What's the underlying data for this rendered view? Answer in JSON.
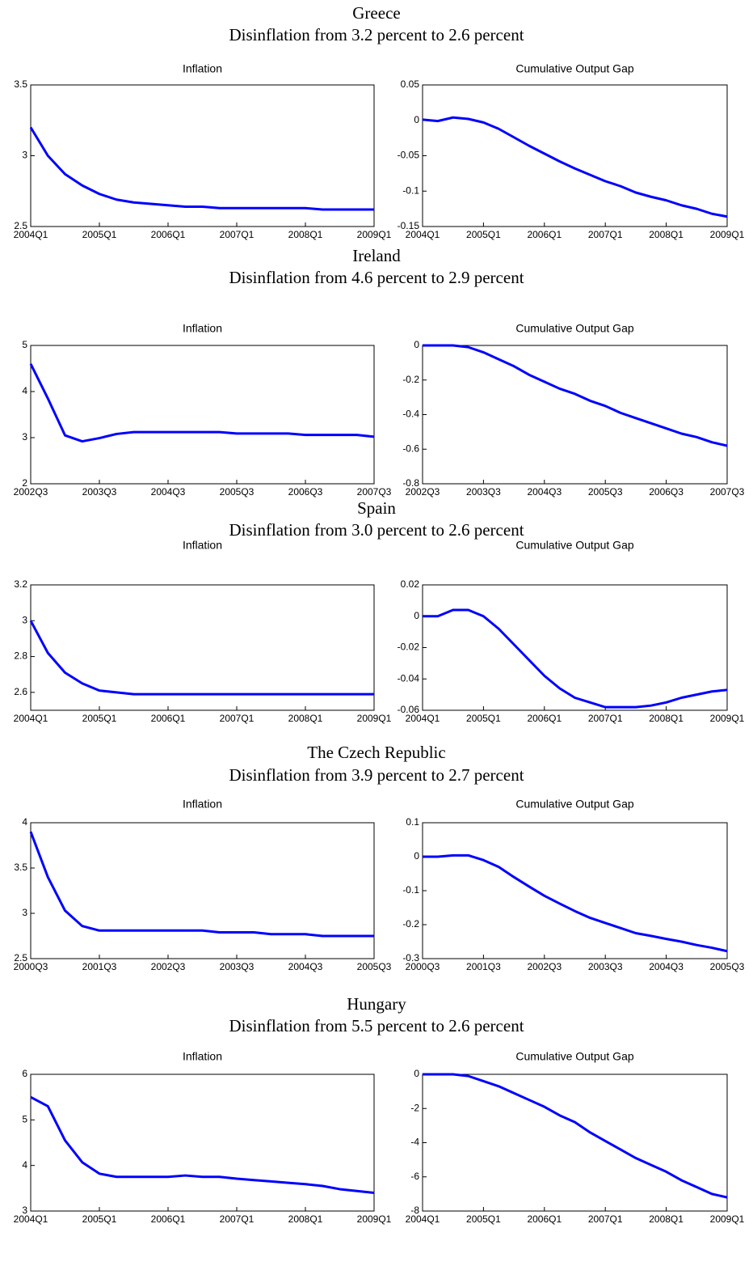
{
  "panels": [
    {
      "title": "Greece",
      "subtitle": "Disinflation from 3.2 percent to 2.6 percent"
    },
    {
      "title": "Ireland",
      "subtitle": "Disinflation from 4.6 percent to 2.9 percent"
    },
    {
      "title": "Spain",
      "subtitle": "Disinflation from 3.0 percent to 2.6 percent"
    },
    {
      "title": "The Czech Republic",
      "subtitle": "Disinflation from 3.9 percent to 2.7 percent"
    },
    {
      "title": "Hungary",
      "subtitle": "Disinflation from 5.5 percent to 2.6 percent"
    }
  ],
  "chart_data": [
    {
      "type": "line",
      "title": "Inflation",
      "color": "#0000ff",
      "grid": false,
      "categories": [
        "2004Q1",
        null,
        null,
        null,
        "2005Q1",
        null,
        null,
        null,
        "2006Q1",
        null,
        null,
        null,
        "2007Q1",
        null,
        null,
        null,
        "2008Q1",
        null,
        null,
        null,
        "2009Q1"
      ],
      "values": [
        3.2,
        3.0,
        2.87,
        2.79,
        2.73,
        2.69,
        2.67,
        2.66,
        2.65,
        2.64,
        2.64,
        2.63,
        2.63,
        2.63,
        2.63,
        2.63,
        2.63,
        2.62,
        2.62,
        2.62,
        2.62
      ],
      "ylim": [
        2.5,
        3.5
      ],
      "yticks": [
        2.5,
        3,
        3.5
      ]
    },
    {
      "type": "line",
      "title": "Cumulative Output Gap",
      "color": "#0000ff",
      "grid": false,
      "categories": [
        "2004Q1",
        null,
        null,
        null,
        "2005Q1",
        null,
        null,
        null,
        "2006Q1",
        null,
        null,
        null,
        "2007Q1",
        null,
        null,
        null,
        "2008Q1",
        null,
        null,
        null,
        "2009Q1"
      ],
      "values": [
        0.001,
        -0.001,
        0.004,
        0.002,
        -0.003,
        -0.012,
        -0.024,
        -0.036,
        -0.047,
        -0.058,
        -0.068,
        -0.077,
        -0.086,
        -0.093,
        -0.102,
        -0.108,
        -0.113,
        -0.12,
        -0.125,
        -0.132,
        -0.136
      ],
      "ylim": [
        -0.15,
        0.05
      ],
      "yticks": [
        -0.15,
        -0.1,
        -0.05,
        0,
        0.05
      ]
    },
    {
      "type": "line",
      "title": "Inflation",
      "color": "#0000ff",
      "grid": false,
      "categories": [
        "2002Q3",
        null,
        null,
        null,
        "2003Q3",
        null,
        null,
        null,
        "2004Q3",
        null,
        null,
        null,
        "2005Q3",
        null,
        null,
        null,
        "2006Q3",
        null,
        null,
        null,
        "2007Q3"
      ],
      "values": [
        4.6,
        3.85,
        3.05,
        2.92,
        2.99,
        3.08,
        3.12,
        3.12,
        3.12,
        3.12,
        3.12,
        3.12,
        3.09,
        3.09,
        3.09,
        3.09,
        3.06,
        3.06,
        3.06,
        3.06,
        3.02
      ],
      "ylim": [
        2,
        5
      ],
      "yticks": [
        2,
        3,
        4,
        5
      ]
    },
    {
      "type": "line",
      "title": "Cumulative Output Gap",
      "color": "#0000ff",
      "grid": false,
      "categories": [
        "2002Q3",
        null,
        null,
        null,
        "2003Q3",
        null,
        null,
        null,
        "2004Q3",
        null,
        null,
        null,
        "2005Q3",
        null,
        null,
        null,
        "2006Q3",
        null,
        null,
        null,
        "2007Q3"
      ],
      "values": [
        0,
        0,
        0,
        -0.01,
        -0.04,
        -0.08,
        -0.12,
        -0.17,
        -0.21,
        -0.25,
        -0.28,
        -0.32,
        -0.35,
        -0.39,
        -0.42,
        -0.45,
        -0.48,
        -0.51,
        -0.53,
        -0.56,
        -0.58
      ],
      "ylim": [
        -0.8,
        0
      ],
      "yticks": [
        -0.8,
        -0.6,
        -0.4,
        -0.2,
        0
      ]
    },
    {
      "type": "line",
      "title": "Inflation",
      "color": "#0000ff",
      "grid": false,
      "categories": [
        "2004Q1",
        null,
        null,
        null,
        "2005Q1",
        null,
        null,
        null,
        "2006Q1",
        null,
        null,
        null,
        "2007Q1",
        null,
        null,
        null,
        "2008Q1",
        null,
        null,
        null,
        "2009Q1"
      ],
      "values": [
        3.0,
        2.82,
        2.71,
        2.65,
        2.61,
        2.6,
        2.59,
        2.59,
        2.59,
        2.59,
        2.59,
        2.59,
        2.59,
        2.59,
        2.59,
        2.59,
        2.59,
        2.59,
        2.59,
        2.59,
        2.59
      ],
      "ylim": [
        2.5,
        3.2
      ],
      "yticks": [
        2.6,
        2.8,
        3,
        3.2
      ]
    },
    {
      "type": "line",
      "title": "Cumulative Output Gap",
      "color": "#0000ff",
      "grid": false,
      "categories": [
        "2004Q1",
        null,
        null,
        null,
        "2005Q1",
        null,
        null,
        null,
        "2006Q1",
        null,
        null,
        null,
        "2007Q1",
        null,
        null,
        null,
        "2008Q1",
        null,
        null,
        null,
        "2009Q1"
      ],
      "values": [
        0,
        0,
        0.004,
        0.004,
        0,
        -0.008,
        -0.018,
        -0.028,
        -0.038,
        -0.046,
        -0.052,
        -0.055,
        -0.058,
        -0.058,
        -0.058,
        -0.057,
        -0.055,
        -0.052,
        -0.05,
        -0.048,
        -0.047
      ],
      "ylim": [
        -0.06,
        0.02
      ],
      "yticks": [
        -0.06,
        -0.04,
        -0.02,
        0,
        0.02
      ]
    },
    {
      "type": "line",
      "title": "Inflation",
      "color": "#0000ff",
      "grid": false,
      "categories": [
        "2000Q3",
        null,
        null,
        null,
        "2001Q3",
        null,
        null,
        null,
        "2002Q3",
        null,
        null,
        null,
        "2003Q3",
        null,
        null,
        null,
        "2004Q3",
        null,
        null,
        null,
        "2005Q3"
      ],
      "values": [
        3.9,
        3.4,
        3.03,
        2.86,
        2.81,
        2.81,
        2.81,
        2.81,
        2.81,
        2.81,
        2.81,
        2.79,
        2.79,
        2.79,
        2.77,
        2.77,
        2.77,
        2.75,
        2.75,
        2.75,
        2.75
      ],
      "ylim": [
        2.5,
        4
      ],
      "yticks": [
        2.5,
        3,
        3.5,
        4
      ]
    },
    {
      "type": "line",
      "title": "Cumulative Output Gap",
      "color": "#0000ff",
      "grid": false,
      "categories": [
        "2000Q3",
        null,
        null,
        null,
        "2001Q3",
        null,
        null,
        null,
        "2002Q3",
        null,
        null,
        null,
        "2003Q3",
        null,
        null,
        null,
        "2004Q3",
        null,
        null,
        null,
        "2005Q3"
      ],
      "values": [
        0,
        0,
        0.004,
        0.004,
        -0.01,
        -0.03,
        -0.06,
        -0.088,
        -0.115,
        -0.138,
        -0.16,
        -0.18,
        -0.195,
        -0.21,
        -0.225,
        -0.233,
        -0.242,
        -0.25,
        -0.26,
        -0.268,
        -0.278
      ],
      "ylim": [
        -0.3,
        0.1
      ],
      "yticks": [
        -0.3,
        -0.2,
        -0.1,
        0,
        0.1
      ]
    },
    {
      "type": "line",
      "title": "Inflation",
      "color": "#0000ff",
      "grid": false,
      "categories": [
        "2004Q1",
        null,
        null,
        null,
        "2005Q1",
        null,
        null,
        null,
        "2006Q1",
        null,
        null,
        null,
        "2007Q1",
        null,
        null,
        null,
        "2008Q1",
        null,
        null,
        null,
        "2009Q1"
      ],
      "values": [
        5.5,
        5.3,
        4.55,
        4.07,
        3.82,
        3.75,
        3.75,
        3.75,
        3.75,
        3.78,
        3.75,
        3.75,
        3.71,
        3.68,
        3.65,
        3.62,
        3.59,
        3.55,
        3.48,
        3.44,
        3.4
      ],
      "ylim": [
        3,
        6
      ],
      "yticks": [
        3,
        4,
        5,
        6
      ]
    },
    {
      "type": "line",
      "title": "Cumulative Output Gap",
      "color": "#0000ff",
      "grid": false,
      "categories": [
        "2004Q1",
        null,
        null,
        null,
        "2005Q1",
        null,
        null,
        null,
        "2006Q1",
        null,
        null,
        null,
        "2007Q1",
        null,
        null,
        null,
        "2008Q1",
        null,
        null,
        null,
        "2009Q1"
      ],
      "values": [
        0,
        0,
        0,
        -0.1,
        -0.4,
        -0.7,
        -1.1,
        -1.5,
        -1.9,
        -2.4,
        -2.8,
        -3.4,
        -3.9,
        -4.4,
        -4.9,
        -5.3,
        -5.7,
        -6.2,
        -6.6,
        -7.0,
        -7.2
      ],
      "ylim": [
        -8,
        0
      ],
      "yticks": [
        -8,
        -6,
        -4,
        -2,
        0
      ]
    }
  ]
}
